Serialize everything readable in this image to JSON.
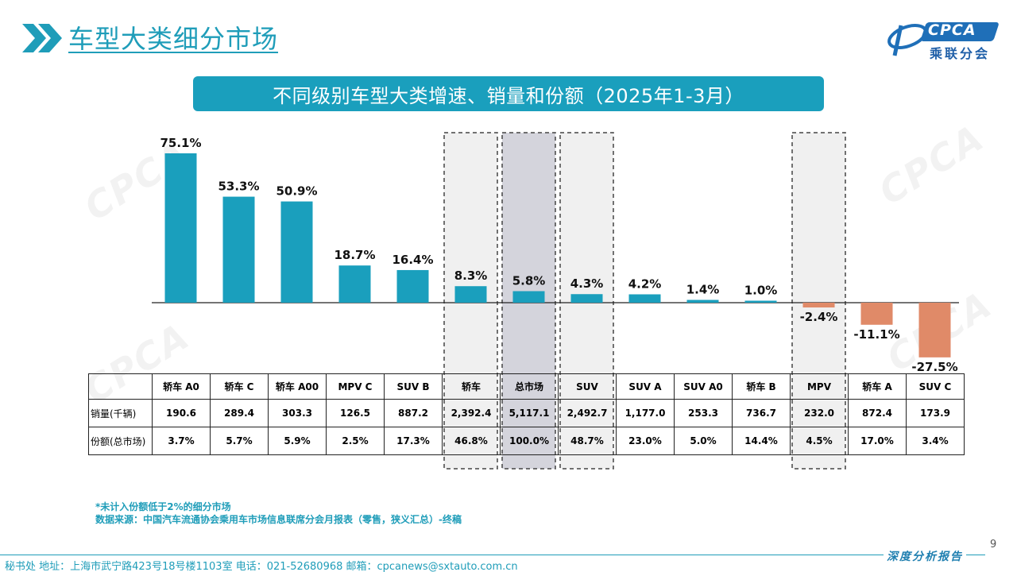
{
  "page": {
    "title": "车型大类细分市场",
    "page_number": "9"
  },
  "logo": {
    "brand": "CPCA",
    "brand_cn": "乘联分会"
  },
  "watermark": {
    "text": "CPCA"
  },
  "chart_data": {
    "type": "bar",
    "title": "不同级别车型大类增速、销量和份额（2025年1-3月）",
    "categories": [
      "轿车 A0",
      "轿车 C",
      "轿车 A00",
      "MPV C",
      "SUV B",
      "轿车",
      "总市场",
      "SUV",
      "SUV A",
      "SUV A0",
      "轿车 B",
      "MPV",
      "轿车 A",
      "SUV C"
    ],
    "series": [
      {
        "values": [
          75.1,
          53.3,
          50.9,
          18.7,
          16.4,
          8.3,
          5.8,
          4.3,
          4.2,
          1.4,
          1.0,
          -2.4,
          -11.1,
          -27.5
        ],
        "data_labels": [
          "75.1%",
          "53.3%",
          "50.9%",
          "18.7%",
          "16.4%",
          "8.3%",
          "5.8%",
          "4.3%",
          "4.2%",
          "1.4%",
          "1.0%",
          "-2.4%",
          "-11.1%",
          "-27.5%"
        ]
      }
    ],
    "highlighted": [
      "轿车",
      "总市场",
      "SUV",
      "MPV"
    ],
    "colors": {
      "positive": "#1a9fbd",
      "negative": "#e08a68",
      "highlight_box": "#f0f0f0",
      "highlight_total": "#d4d4dc"
    },
    "table": {
      "row_headers": [
        "销量(千辆)",
        "份额(总市场)"
      ],
      "sales": [
        "190.6",
        "289.4",
        "303.3",
        "126.5",
        "887.2",
        "2,392.4",
        "5,117.1",
        "2,492.7",
        "1,177.0",
        "253.3",
        "736.7",
        "232.0",
        "872.4",
        "173.9"
      ],
      "share": [
        "3.7%",
        "5.7%",
        "5.9%",
        "2.5%",
        "17.3%",
        "46.8%",
        "100.0%",
        "48.7%",
        "23.0%",
        "5.0%",
        "14.4%",
        "4.5%",
        "17.0%",
        "3.4%"
      ]
    }
  },
  "footnotes": {
    "note": "*未计入份额低于2%的细分市场",
    "source": "数据来源：中国汽车流通协会乘用车市场信息联席分会月报表（零售，狭义汇总）-终稿"
  },
  "footer": {
    "address": "秘书处   地址：上海市武宁路423号18号楼1103室  电话：021-52680968   邮箱：cpcanews@sxtauto.com.cn",
    "report_label": "深度分析报告"
  }
}
